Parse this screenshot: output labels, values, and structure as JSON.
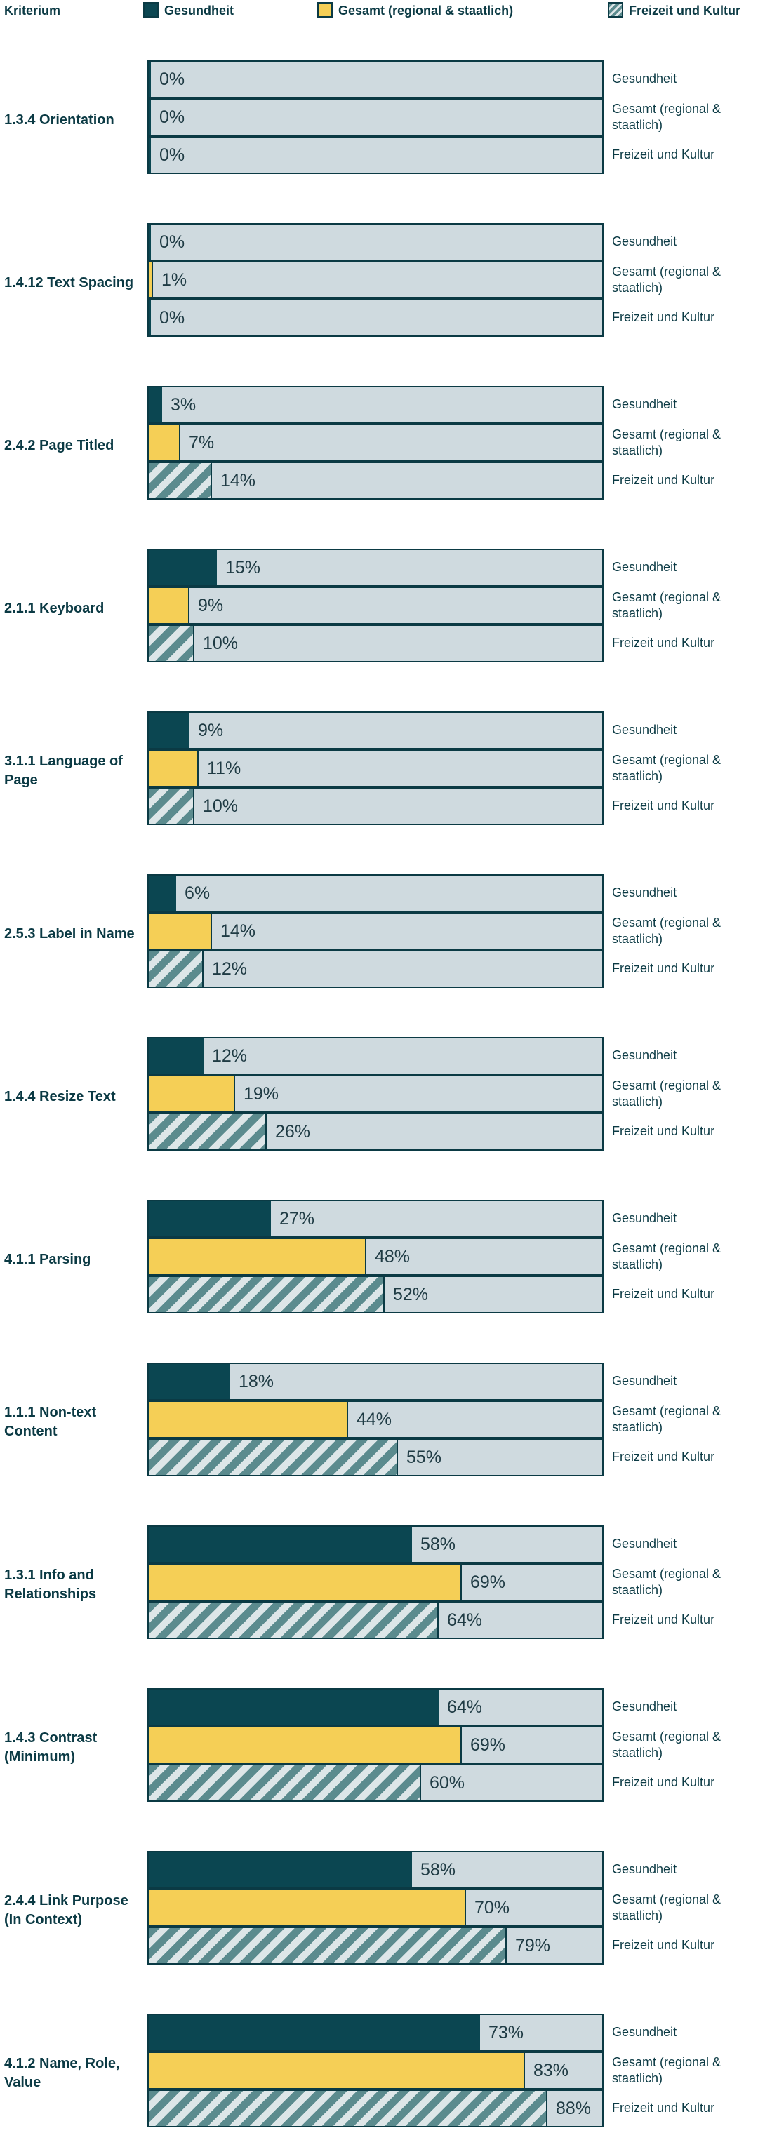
{
  "chart_data": {
    "type": "bar",
    "orientation": "horizontal",
    "xlim": [
      0,
      100
    ],
    "unit": "%",
    "legend_header": "Kriterium",
    "series": [
      {
        "key": "gesundheit",
        "name": "Gesundheit",
        "row_label": "Gesundheit",
        "color": "#0b4651"
      },
      {
        "key": "gesamt",
        "name": "Gesamt (regional & staatlich)",
        "row_label": "Gesamt (regional & staatlich)",
        "color": "#f5cf56"
      },
      {
        "key": "freizeit",
        "name": "Freizeit und Kultur",
        "row_label": "Freizeit und Kultur",
        "color": "#5b8b8e"
      }
    ],
    "categories": [
      {
        "label": "1.3.4 Orientation",
        "values": [
          0,
          0,
          0
        ]
      },
      {
        "label": "1.4.12 Text Spacing",
        "values": [
          0,
          1,
          0
        ]
      },
      {
        "label": "2.4.2 Page Titled",
        "values": [
          3,
          7,
          14
        ]
      },
      {
        "label": "2.1.1 Keyboard",
        "values": [
          15,
          9,
          10
        ]
      },
      {
        "label": "3.1.1 Language of Page",
        "values": [
          9,
          11,
          10
        ]
      },
      {
        "label": "2.5.3 Label in Name",
        "values": [
          6,
          14,
          12
        ]
      },
      {
        "label": "1.4.4 Resize Text",
        "values": [
          12,
          19,
          26
        ]
      },
      {
        "label": "4.1.1 Parsing",
        "values": [
          27,
          48,
          52
        ]
      },
      {
        "label": "1.1.1 Non-text Content",
        "values": [
          18,
          44,
          55
        ]
      },
      {
        "label": "1.3.1 Info and Relationships",
        "values": [
          58,
          69,
          64
        ]
      },
      {
        "label": "1.4.3 Contrast (Minimum)",
        "values": [
          64,
          69,
          60
        ]
      },
      {
        "label": "2.4.4 Link Purpose (In Context)",
        "values": [
          58,
          70,
          79
        ]
      },
      {
        "label": "4.1.2 Name, Role, Value",
        "values": [
          73,
          83,
          88
        ]
      }
    ]
  }
}
